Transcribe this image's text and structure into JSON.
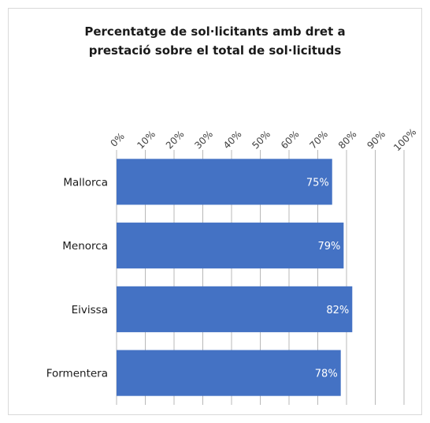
{
  "chart_data": {
    "type": "bar",
    "orientation": "horizontal",
    "title_lines": [
      "Percentatge de sol·licitants amb dret a",
      "prestació sobre el total de sol·licituds"
    ],
    "categories": [
      "Mallorca",
      "Menorca",
      "Eivissa",
      "Formentera"
    ],
    "values": [
      75,
      79,
      82,
      78
    ],
    "data_labels": [
      "75%",
      "79%",
      "82%",
      "78%"
    ],
    "x_ticks": [
      "0%",
      "10%",
      "20%",
      "30%",
      "40%",
      "50%",
      "60%",
      "70%",
      "80%",
      "90%",
      "100%"
    ],
    "xlim": [
      0,
      100
    ],
    "x_axis_position": "top",
    "grid": true,
    "bar_color": "#4472c4"
  }
}
